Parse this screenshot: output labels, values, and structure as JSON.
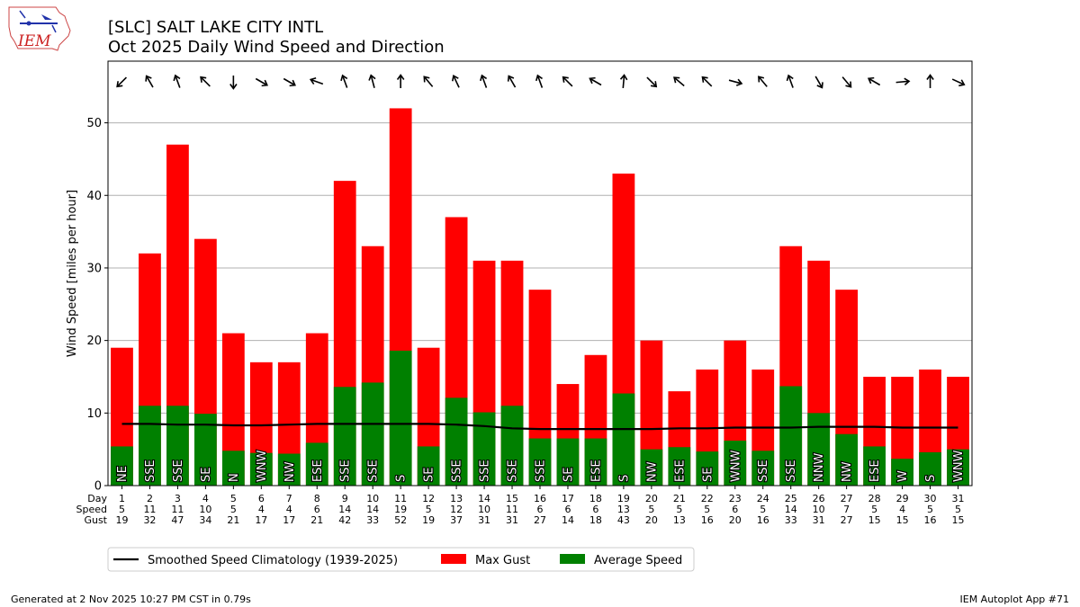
{
  "header": {
    "title_line1": "[SLC] SALT LAKE CITY INTL",
    "title_line2": "Oct 2025 Daily Wind Speed and Direction",
    "logo_text": "IEM"
  },
  "footer": {
    "generated": "Generated at 2 Nov 2025 10:27 PM CST in 0.79s",
    "app": "IEM Autoplot App #71"
  },
  "colors": {
    "gust": "#ff0000",
    "avg": "#008000",
    "clim": "#000000",
    "grid": "#b0b0b0"
  },
  "chart_data": {
    "type": "bar",
    "title": "Oct 2025 Daily Wind Speed and Direction",
    "ylabel": "Wind Speed [miles per hour]",
    "xlabel": "",
    "ylim": [
      0,
      58.5
    ],
    "yticks": [
      0,
      10,
      20,
      30,
      40,
      50
    ],
    "row_labels": [
      "Day",
      "Speed",
      "Gust"
    ],
    "days": [
      1,
      2,
      3,
      4,
      5,
      6,
      7,
      8,
      9,
      10,
      11,
      12,
      13,
      14,
      15,
      16,
      17,
      18,
      19,
      20,
      21,
      22,
      23,
      24,
      25,
      26,
      27,
      28,
      29,
      30,
      31
    ],
    "speed_labels": [
      5,
      11,
      11,
      10,
      5,
      4,
      4,
      6,
      14,
      14,
      19,
      5,
      12,
      10,
      11,
      6,
      6,
      6,
      13,
      5,
      5,
      5,
      6,
      5,
      14,
      10,
      7,
      5,
      4,
      5,
      5
    ],
    "gust_labels": [
      19,
      32,
      47,
      34,
      21,
      17,
      17,
      21,
      42,
      33,
      52,
      19,
      37,
      31,
      31,
      27,
      14,
      18,
      43,
      20,
      13,
      16,
      20,
      16,
      33,
      31,
      27,
      15,
      15,
      16,
      15
    ],
    "series": [
      {
        "name": "Max Gust",
        "values": [
          19,
          32,
          47,
          34,
          21,
          17,
          17,
          21,
          42,
          33,
          52,
          19,
          37,
          31,
          31,
          27,
          14,
          18,
          43,
          20,
          13,
          16,
          20,
          16,
          33,
          31,
          27,
          15,
          15,
          16,
          15
        ]
      },
      {
        "name": "Average Speed",
        "values": [
          5.4,
          11.0,
          11.0,
          9.9,
          4.8,
          4.5,
          4.4,
          5.9,
          13.6,
          14.2,
          18.6,
          5.4,
          12.1,
          10.1,
          11.0,
          6.5,
          6.5,
          6.5,
          12.7,
          5.0,
          5.3,
          4.7,
          6.2,
          4.8,
          13.7,
          10.0,
          7.1,
          5.4,
          3.7,
          4.6,
          5.0
        ]
      },
      {
        "name": "Smoothed Speed Climatology (1939-2025)",
        "values": [
          8.5,
          8.5,
          8.4,
          8.4,
          8.3,
          8.3,
          8.4,
          8.5,
          8.5,
          8.5,
          8.5,
          8.5,
          8.4,
          8.2,
          7.9,
          7.8,
          7.8,
          7.8,
          7.8,
          7.8,
          7.9,
          7.9,
          8.0,
          8.0,
          8.0,
          8.1,
          8.1,
          8.1,
          8.0,
          8.0,
          8.0
        ]
      }
    ],
    "directions": [
      "NE",
      "SSE",
      "SSE",
      "SE",
      "N",
      "WNW",
      "NW",
      "ESE",
      "SSE",
      "SSE",
      "S",
      "SE",
      "SSE",
      "SSE",
      "SSE",
      "SSE",
      "SE",
      "ESE",
      "S",
      "NW",
      "ESE",
      "SE",
      "WNW",
      "SSE",
      "SSE",
      "NNW",
      "NW",
      "ESE",
      "W",
      "S",
      "WNW"
    ],
    "arrow_angles_deg": [
      225,
      330,
      340,
      315,
      180,
      120,
      120,
      290,
      340,
      345,
      0,
      320,
      335,
      340,
      330,
      340,
      315,
      300,
      5,
      135,
      310,
      315,
      105,
      320,
      340,
      150,
      140,
      300,
      85,
      0,
      115
    ],
    "legend": [
      "Smoothed Speed Climatology (1939-2025)",
      "Max Gust",
      "Average Speed"
    ],
    "legend_position": "below"
  }
}
